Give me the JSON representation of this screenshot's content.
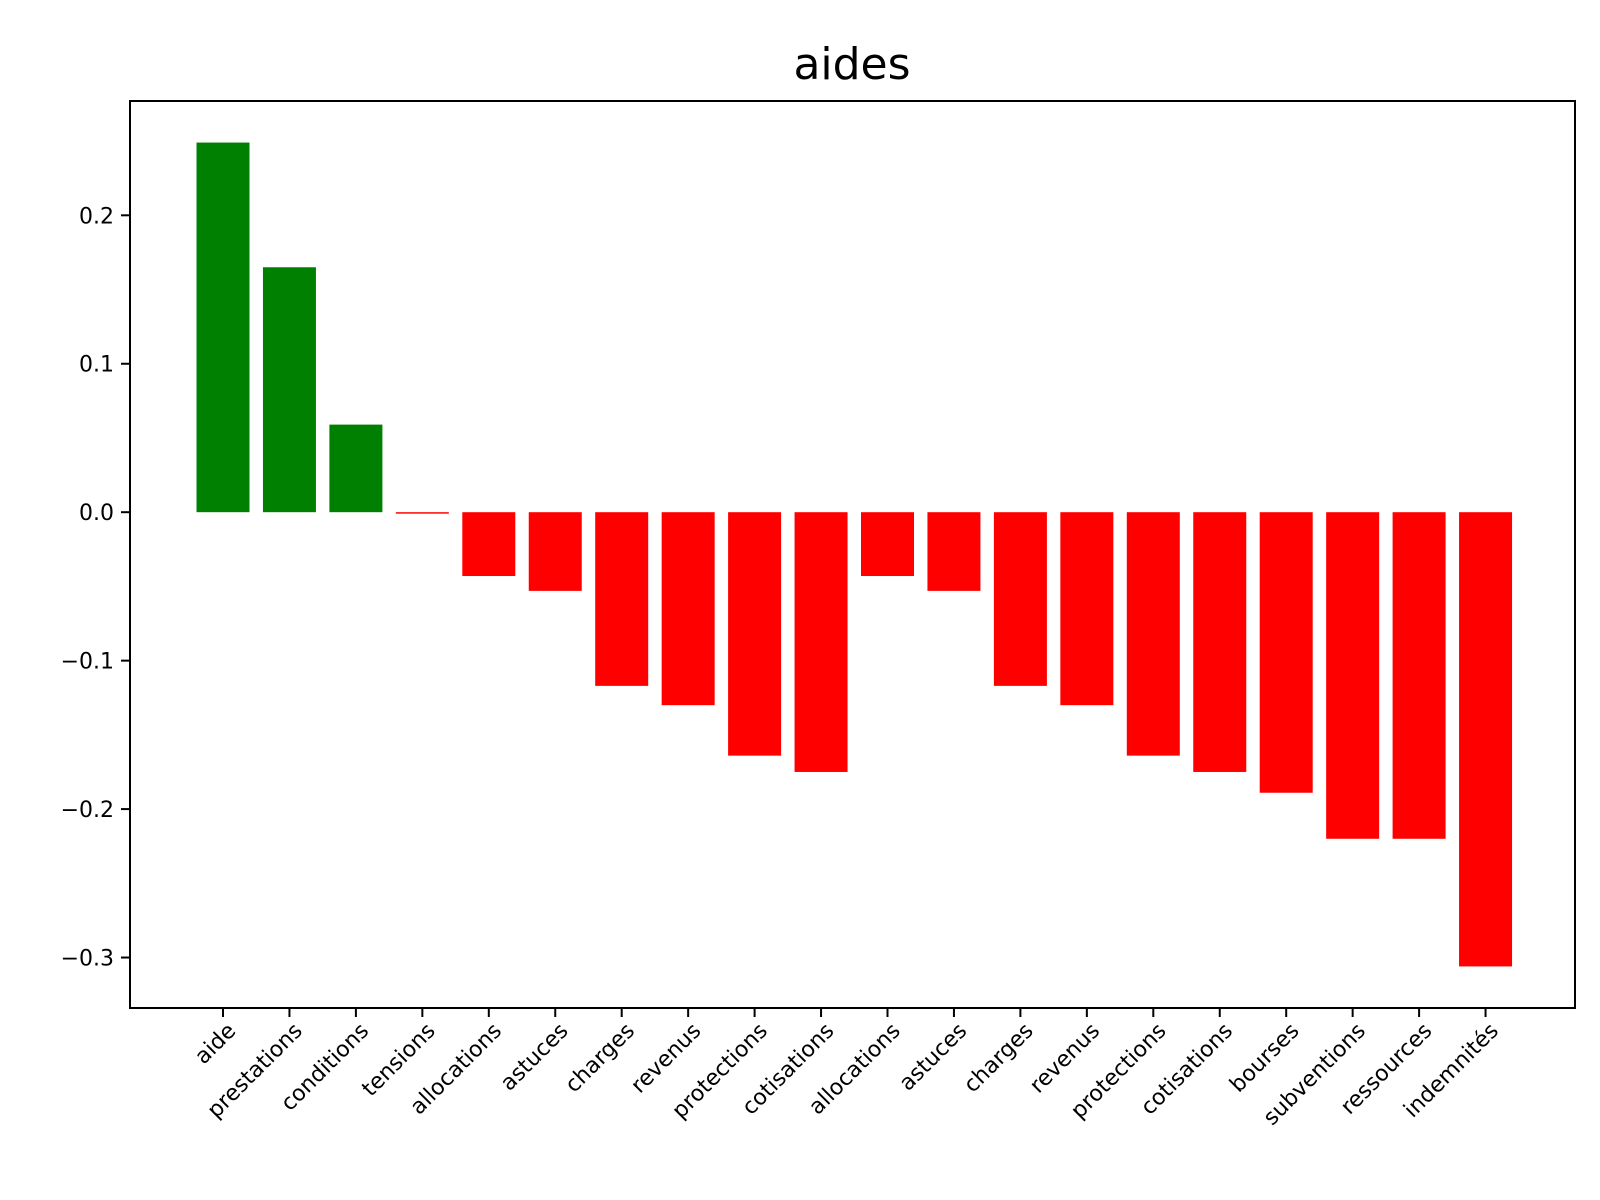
{
  "chart_data": {
    "type": "bar",
    "title": "aides",
    "xlabel": "",
    "ylabel": "",
    "categories": [
      "aide",
      "prestations",
      "conditions",
      "tensions",
      "allocations",
      "astuces",
      "charges",
      "revenus",
      "protections",
      "cotisations",
      "allocations",
      "astuces",
      "charges",
      "revenus",
      "protections",
      "cotisations",
      "bourses",
      "subventions",
      "ressources",
      "indemnités"
    ],
    "values": [
      0.249,
      0.165,
      0.059,
      -0.001,
      -0.043,
      -0.053,
      -0.117,
      -0.13,
      -0.164,
      -0.175,
      -0.043,
      -0.053,
      -0.117,
      -0.13,
      -0.164,
      -0.175,
      -0.189,
      -0.22,
      -0.22,
      -0.306
    ],
    "yticks": [
      -0.3,
      -0.2,
      -0.1,
      0.0,
      0.1,
      0.2
    ],
    "ytick_labels": [
      "−0.3",
      "−0.2",
      "−0.1",
      "0.0",
      "0.1",
      "0.2"
    ],
    "ylim": [
      -0.334,
      0.277
    ],
    "positive_color": "#008000",
    "negative_color": "#ff0000",
    "grid": false,
    "legend": false
  }
}
